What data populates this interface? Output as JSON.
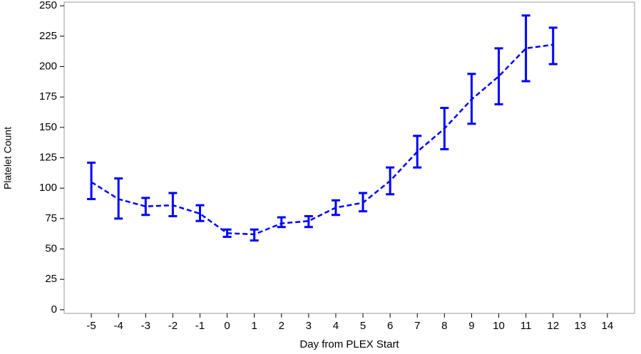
{
  "chart_data": {
    "type": "errorbar-line",
    "x_label": "Day from PLEX Start",
    "y_label": "Platelet Count",
    "x": [
      -5,
      -4,
      -3,
      -2,
      -1,
      0,
      1,
      2,
      3,
      4,
      5,
      6,
      7,
      8,
      9,
      10,
      11,
      12
    ],
    "series": [
      {
        "color": "#0000ff",
        "values": [
          105,
          91,
          85,
          86,
          79,
          63,
          62,
          71,
          73,
          84,
          88,
          106,
          130,
          149,
          173,
          192,
          215,
          218
        ],
        "lower": [
          91,
          75,
          78,
          77,
          73,
          60,
          57,
          68,
          68,
          78,
          81,
          95,
          117,
          132,
          153,
          169,
          188,
          202
        ],
        "upper": [
          121,
          108,
          92,
          96,
          86,
          66,
          66,
          76,
          77,
          90,
          96,
          117,
          143,
          166,
          194,
          215,
          242,
          232
        ]
      }
    ],
    "xlim": [
      -6,
      15
    ],
    "xticks": [
      -5,
      -4,
      -3,
      -2,
      -1,
      0,
      1,
      2,
      3,
      4,
      5,
      6,
      7,
      8,
      9,
      10,
      11,
      12,
      13,
      14
    ],
    "ylim": [
      -3,
      253
    ],
    "yticks": [
      0,
      25,
      50,
      75,
      100,
      125,
      150,
      175,
      200,
      225,
      250
    ]
  }
}
